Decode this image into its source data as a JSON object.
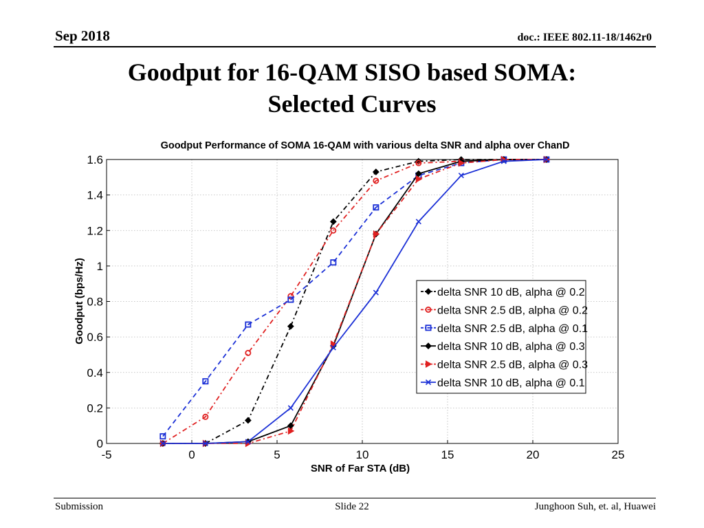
{
  "header": {
    "date": "Sep 2018",
    "doc": "doc.: IEEE 802.11-18/1462r0"
  },
  "slide": {
    "title_line1": "Goodput for 16-QAM SISO based SOMA:",
    "title_line2": "Selected Curves"
  },
  "footer": {
    "left": "Submission",
    "center": "Slide 22",
    "right": "Junghoon Suh, et. al, Huawei"
  },
  "chart_data": {
    "type": "line",
    "title": "Goodput Performance of SOMA 16-QAM with various delta SNR and alpha over ChanD",
    "xlabel": "SNR of Far STA (dB)",
    "ylabel": "Goodput (bps/Hz)",
    "xlim": [
      -5,
      25
    ],
    "ylim": [
      0,
      1.6
    ],
    "xticks": [
      -5,
      0,
      5,
      10,
      15,
      20,
      25
    ],
    "yticks": [
      0,
      0.2,
      0.4,
      0.6,
      0.8,
      1,
      1.2,
      1.4,
      1.6
    ],
    "grid": true,
    "legend_position": "bottom-right",
    "series": [
      {
        "name": "delta SNR 10 dB, alpha @ 0.2",
        "color": "#000000",
        "dash": "dashdot",
        "marker": "diamond",
        "x": [
          0.8,
          3.3,
          5.8,
          8.3,
          10.8,
          13.3,
          15.8,
          18.3,
          20.8
        ],
        "y": [
          0.0,
          0.13,
          0.66,
          1.25,
          1.53,
          1.59,
          1.6,
          1.6,
          1.6
        ]
      },
      {
        "name": "delta SNR 2.5 dB, alpha @ 0.2",
        "color": "#e02020",
        "dash": "dashdot",
        "marker": "circle",
        "x": [
          -1.7,
          0.8,
          3.3,
          5.8,
          8.3,
          10.8,
          13.3,
          15.8,
          18.3,
          20.8
        ],
        "y": [
          0.0,
          0.15,
          0.51,
          0.83,
          1.2,
          1.48,
          1.58,
          1.59,
          1.6,
          1.6
        ]
      },
      {
        "name": "delta SNR 2.5 dB, alpha @ 0.1",
        "color": "#1a2fd6",
        "dash": "dashed",
        "marker": "square",
        "x": [
          -1.7,
          0.8,
          3.3,
          5.8,
          8.3,
          10.8,
          13.3,
          15.8,
          18.3,
          20.8
        ],
        "y": [
          0.04,
          0.35,
          0.67,
          0.81,
          1.02,
          1.33,
          1.51,
          1.58,
          1.6,
          1.6
        ]
      },
      {
        "name": "delta SNR 10 dB, alpha @ 0.3",
        "color": "#000000",
        "dash": "solid",
        "marker": "diamond",
        "x": [
          -1.7,
          0.8,
          3.3,
          5.8,
          8.3,
          10.8,
          13.3,
          15.8,
          18.3,
          20.8
        ],
        "y": [
          0.0,
          0.0,
          0.01,
          0.1,
          0.55,
          1.18,
          1.52,
          1.59,
          1.6,
          1.6
        ]
      },
      {
        "name": "delta SNR 2.5 dB, alpha @ 0.3",
        "color": "#e02020",
        "dash": "dashdot",
        "marker": "triangle-right",
        "x": [
          -1.7,
          0.8,
          3.3,
          5.8,
          8.3,
          10.8,
          13.3,
          15.8,
          18.3,
          20.8
        ],
        "y": [
          0.0,
          0.0,
          0.0,
          0.07,
          0.56,
          1.18,
          1.49,
          1.58,
          1.6,
          1.6
        ]
      },
      {
        "name": "delta SNR 10 dB, alpha @ 0.1",
        "color": "#1a2fd6",
        "dash": "solid",
        "marker": "x",
        "x": [
          -1.7,
          0.8,
          3.3,
          5.8,
          8.3,
          10.8,
          13.3,
          15.8,
          18.3,
          20.8
        ],
        "y": [
          0.0,
          0.0,
          0.01,
          0.2,
          0.54,
          0.85,
          1.25,
          1.51,
          1.59,
          1.6
        ]
      }
    ]
  }
}
